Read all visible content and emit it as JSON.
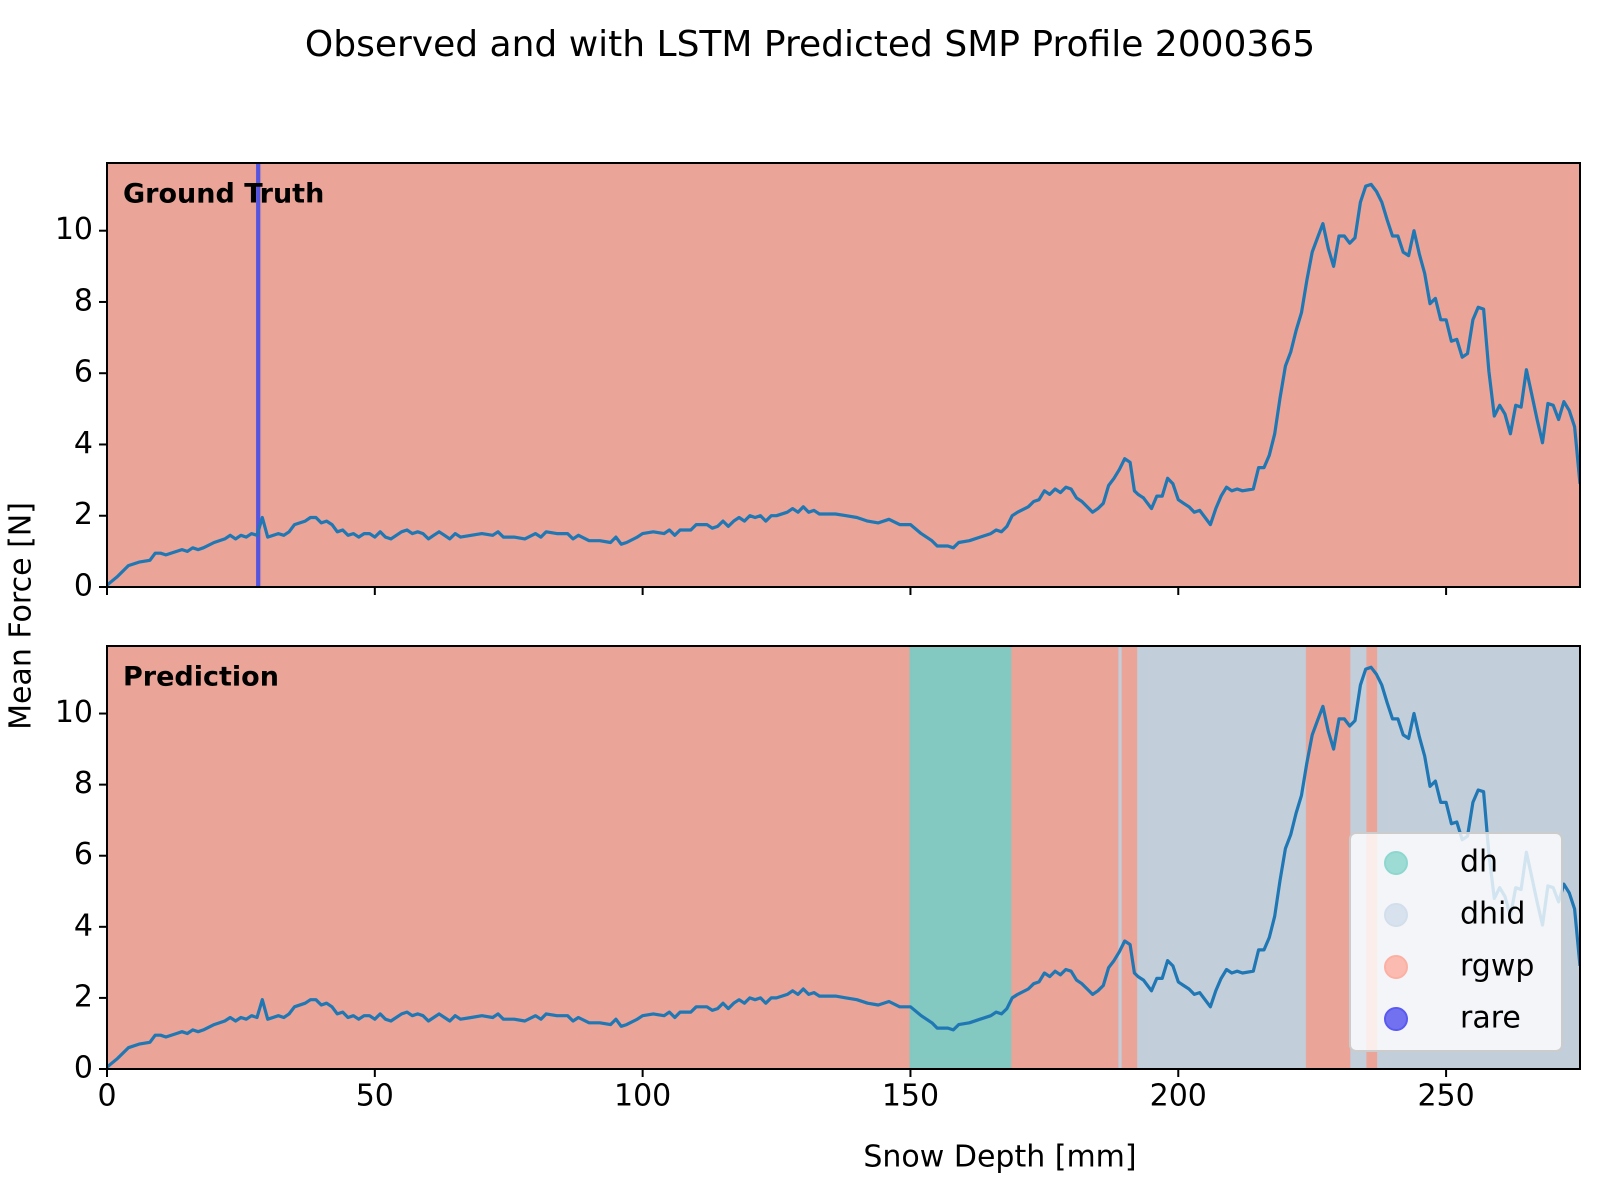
{
  "chart_data": {
    "type": "line",
    "title": "Observed and with LSTM Predicted SMP Profile 2000365",
    "xlabel": "Snow Depth [mm]",
    "ylabel": "Mean Force [N]",
    "xlim": [
      0,
      275
    ],
    "xticks": [
      0,
      50,
      100,
      150,
      200,
      250
    ],
    "ylim": [
      0,
      11.9
    ],
    "yticks": [
      0,
      2,
      4,
      6,
      8,
      10
    ],
    "line_color": "#1f77b4",
    "x": [
      0,
      2,
      4,
      6,
      8,
      9,
      10,
      11,
      13,
      14,
      15,
      16,
      17,
      18,
      20,
      22,
      23,
      24,
      25,
      26,
      27,
      28,
      29,
      30,
      32,
      33,
      34,
      35,
      37,
      38,
      39,
      40,
      41,
      42,
      43,
      44,
      45,
      46,
      47,
      48,
      49,
      50,
      51,
      52,
      53,
      55,
      56,
      57,
      58,
      59,
      60,
      61,
      62,
      63,
      64,
      65,
      66,
      68,
      70,
      72,
      73,
      74,
      76,
      78,
      80,
      81,
      82,
      84,
      86,
      87,
      88,
      90,
      92,
      94,
      95,
      96,
      97,
      99,
      100,
      102,
      104,
      105,
      106,
      107,
      109,
      110,
      112,
      113,
      114,
      115,
      116,
      117,
      118,
      119,
      120,
      121,
      122,
      123,
      124,
      125,
      127,
      128,
      129,
      130,
      131,
      132,
      133,
      134,
      136,
      138,
      140,
      142,
      144,
      146,
      148,
      150,
      152,
      154,
      155,
      157,
      158,
      159,
      161,
      163,
      165,
      166,
      167,
      168,
      169,
      170,
      172,
      173,
      174,
      175,
      176,
      177,
      178,
      179,
      180,
      181,
      182,
      184,
      185,
      186,
      187,
      188,
      189,
      190,
      191,
      191.8,
      192.5,
      193.5,
      195,
      196,
      197,
      198,
      199,
      200,
      201,
      202,
      203,
      204,
      206,
      207,
      208,
      209,
      210,
      211,
      212,
      214,
      215,
      216,
      217,
      218,
      219,
      220,
      221,
      222,
      223,
      224,
      225,
      226,
      227,
      228,
      229,
      230,
      231,
      232,
      233,
      234,
      235,
      236,
      237,
      238,
      239,
      240,
      241,
      242,
      243,
      244,
      245,
      246,
      247,
      248,
      249,
      250,
      251,
      252,
      253,
      254,
      255,
      256,
      257,
      258,
      259,
      260,
      261,
      262,
      263,
      264,
      265,
      266,
      267,
      268,
      269,
      270,
      271,
      272,
      273,
      274,
      275
    ],
    "values": [
      0.05,
      0.3,
      0.6,
      0.7,
      0.75,
      0.95,
      0.95,
      0.9,
      1.0,
      1.05,
      1.0,
      1.1,
      1.05,
      1.1,
      1.25,
      1.35,
      1.45,
      1.35,
      1.45,
      1.4,
      1.5,
      1.45,
      1.95,
      1.4,
      1.5,
      1.45,
      1.55,
      1.75,
      1.85,
      1.95,
      1.95,
      1.8,
      1.85,
      1.75,
      1.55,
      1.6,
      1.45,
      1.5,
      1.4,
      1.5,
      1.5,
      1.4,
      1.55,
      1.4,
      1.35,
      1.55,
      1.6,
      1.5,
      1.55,
      1.5,
      1.35,
      1.45,
      1.55,
      1.45,
      1.35,
      1.5,
      1.4,
      1.45,
      1.5,
      1.45,
      1.55,
      1.4,
      1.4,
      1.35,
      1.5,
      1.4,
      1.55,
      1.5,
      1.5,
      1.35,
      1.45,
      1.3,
      1.3,
      1.25,
      1.4,
      1.2,
      1.25,
      1.4,
      1.5,
      1.55,
      1.5,
      1.6,
      1.45,
      1.6,
      1.6,
      1.75,
      1.75,
      1.65,
      1.7,
      1.85,
      1.7,
      1.85,
      1.95,
      1.85,
      2.0,
      1.95,
      2.0,
      1.85,
      2.0,
      2.0,
      2.1,
      2.2,
      2.1,
      2.25,
      2.1,
      2.15,
      2.05,
      2.05,
      2.05,
      2.0,
      1.95,
      1.85,
      1.8,
      1.9,
      1.75,
      1.75,
      1.5,
      1.3,
      1.15,
      1.15,
      1.1,
      1.25,
      1.3,
      1.4,
      1.5,
      1.6,
      1.55,
      1.7,
      2.0,
      2.1,
      2.25,
      2.4,
      2.45,
      2.7,
      2.6,
      2.75,
      2.65,
      2.8,
      2.75,
      2.5,
      2.4,
      2.1,
      2.2,
      2.35,
      2.85,
      3.05,
      3.3,
      3.6,
      3.5,
      2.7,
      2.6,
      2.5,
      2.2,
      2.55,
      2.55,
      3.05,
      2.9,
      2.45,
      2.35,
      2.25,
      2.1,
      2.15,
      1.75,
      2.2,
      2.55,
      2.8,
      2.7,
      2.75,
      2.7,
      2.75,
      3.35,
      3.35,
      3.7,
      4.3,
      5.3,
      6.2,
      6.6,
      7.2,
      7.7,
      8.6,
      9.4,
      9.8,
      10.2,
      9.5,
      9.0,
      9.85,
      9.85,
      9.65,
      9.8,
      10.8,
      11.25,
      11.3,
      11.1,
      10.8,
      10.3,
      9.85,
      9.85,
      9.4,
      9.3,
      10.0,
      9.35,
      8.8,
      7.95,
      8.1,
      7.5,
      7.5,
      6.9,
      6.95,
      6.45,
      6.55,
      7.5,
      7.85,
      7.8,
      6.05,
      4.8,
      5.1,
      4.85,
      4.3,
      5.1,
      5.05,
      6.1,
      5.4,
      4.7,
      4.05,
      5.15,
      5.1,
      4.7,
      5.2,
      4.95,
      4.5,
      2.9
    ],
    "legend": {
      "corner": "lower right",
      "entries": [
        {
          "name": "dh",
          "color": "#8dd7cf"
        },
        {
          "name": "dhid",
          "color": "#d2deec"
        },
        {
          "name": "rgwp",
          "color": "#fcb0a3"
        },
        {
          "name": "rare",
          "color": "#5a5af0"
        }
      ]
    },
    "panels": [
      {
        "label": "Ground Truth",
        "show_xtick_labels": false,
        "segments": [
          {
            "label": "rgwp",
            "start": 0,
            "end": 28
          },
          {
            "label": "rare",
            "start": 28,
            "end": 28.8
          },
          {
            "label": "rgwp",
            "start": 28.8,
            "end": 275
          }
        ]
      },
      {
        "label": "Prediction",
        "show_xtick_labels": true,
        "show_legend": true,
        "segments": [
          {
            "label": "rgwp",
            "start": 0,
            "end": 150
          },
          {
            "label": "dh",
            "start": 150,
            "end": 169
          },
          {
            "label": "rgwp",
            "start": 169,
            "end": 189
          },
          {
            "label": "dhid",
            "start": 189,
            "end": 189.6
          },
          {
            "label": "rgwp",
            "start": 189.6,
            "end": 192.5
          },
          {
            "label": "dhid",
            "start": 192.5,
            "end": 224
          },
          {
            "label": "rgwp",
            "start": 224,
            "end": 232.3
          },
          {
            "label": "dhid",
            "start": 232.3,
            "end": 235.3
          },
          {
            "label": "rgwp",
            "start": 235.3,
            "end": 237.3
          },
          {
            "label": "dhid",
            "start": 237.3,
            "end": 275
          }
        ]
      }
    ]
  }
}
